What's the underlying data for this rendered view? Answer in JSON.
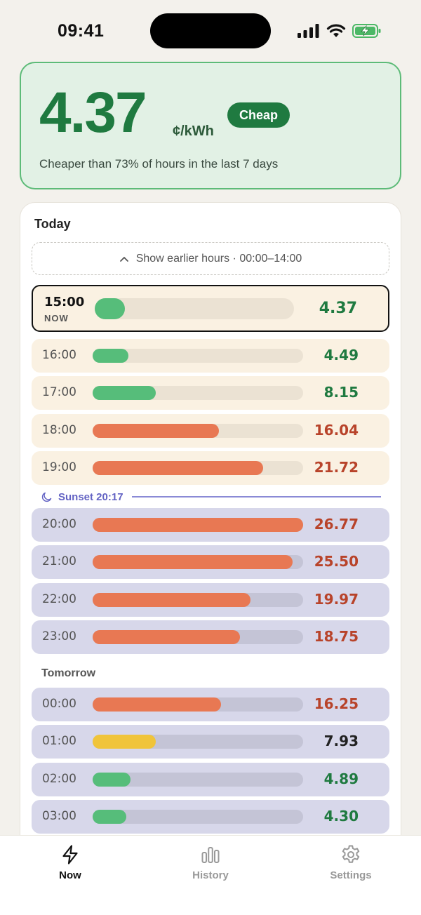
{
  "status_bar": {
    "time": "09:41"
  },
  "hero": {
    "price": "4.37",
    "unit": "¢/kWh",
    "badge": "Cheap",
    "note": "Cheaper than 73% of hours in the last 7 days"
  },
  "today": {
    "title": "Today",
    "earlier_label": "Show earlier hours · 00:00–14:00",
    "now": {
      "time": "15:00",
      "label": "NOW",
      "value": "4.37",
      "level": 0.15,
      "color": "#56bd7a",
      "text_color": "#1f7a40"
    },
    "rows": [
      {
        "time": "16:00",
        "value": "4.49",
        "level": 0.17,
        "color": "#56bd7a",
        "text_color": "#1f7a40",
        "mode": "day"
      },
      {
        "time": "17:00",
        "value": "8.15",
        "level": 0.3,
        "color": "#56bd7a",
        "text_color": "#1f7a40",
        "mode": "day"
      },
      {
        "time": "18:00",
        "value": "16.04",
        "level": 0.6,
        "color": "#e87853",
        "text_color": "#b8432a",
        "mode": "day"
      },
      {
        "time": "19:00",
        "value": "21.72",
        "level": 0.81,
        "color": "#e87853",
        "text_color": "#b8432a",
        "mode": "day"
      },
      {
        "time": "20:00",
        "value": "26.77",
        "level": 1.0,
        "color": "#e87853",
        "text_color": "#b8432a",
        "mode": "night"
      },
      {
        "time": "21:00",
        "value": "25.50",
        "level": 0.95,
        "color": "#e87853",
        "text_color": "#b8432a",
        "mode": "night"
      },
      {
        "time": "22:00",
        "value": "19.97",
        "level": 0.75,
        "color": "#e87853",
        "text_color": "#b8432a",
        "mode": "night"
      },
      {
        "time": "23:00",
        "value": "18.75",
        "level": 0.7,
        "color": "#e87853",
        "text_color": "#b8432a",
        "mode": "night"
      }
    ]
  },
  "sunset": {
    "label": "Sunset 20:17"
  },
  "tomorrow": {
    "title": "Tomorrow",
    "rows": [
      {
        "time": "00:00",
        "value": "16.25",
        "level": 0.61,
        "color": "#e87853",
        "text_color": "#b8432a",
        "mode": "night"
      },
      {
        "time": "01:00",
        "value": "7.93",
        "level": 0.3,
        "color": "#f0c43a",
        "text_color": "#222222",
        "mode": "night"
      },
      {
        "time": "02:00",
        "value": "4.89",
        "level": 0.18,
        "color": "#56bd7a",
        "text_color": "#1f7a40",
        "mode": "night"
      },
      {
        "time": "03:00",
        "value": "4.30",
        "level": 0.16,
        "color": "#56bd7a",
        "text_color": "#1f7a40",
        "mode": "night"
      }
    ]
  },
  "nav": {
    "items": [
      {
        "label": "Now",
        "icon": "bolt-icon",
        "active": true
      },
      {
        "label": "History",
        "icon": "bar-chart-icon",
        "active": false
      },
      {
        "label": "Settings",
        "icon": "gear-icon",
        "active": false
      }
    ]
  },
  "colors": {
    "cheap_green": "#1f7a40",
    "expensive_red": "#b8432a",
    "sunset_purple": "#6363c4"
  }
}
